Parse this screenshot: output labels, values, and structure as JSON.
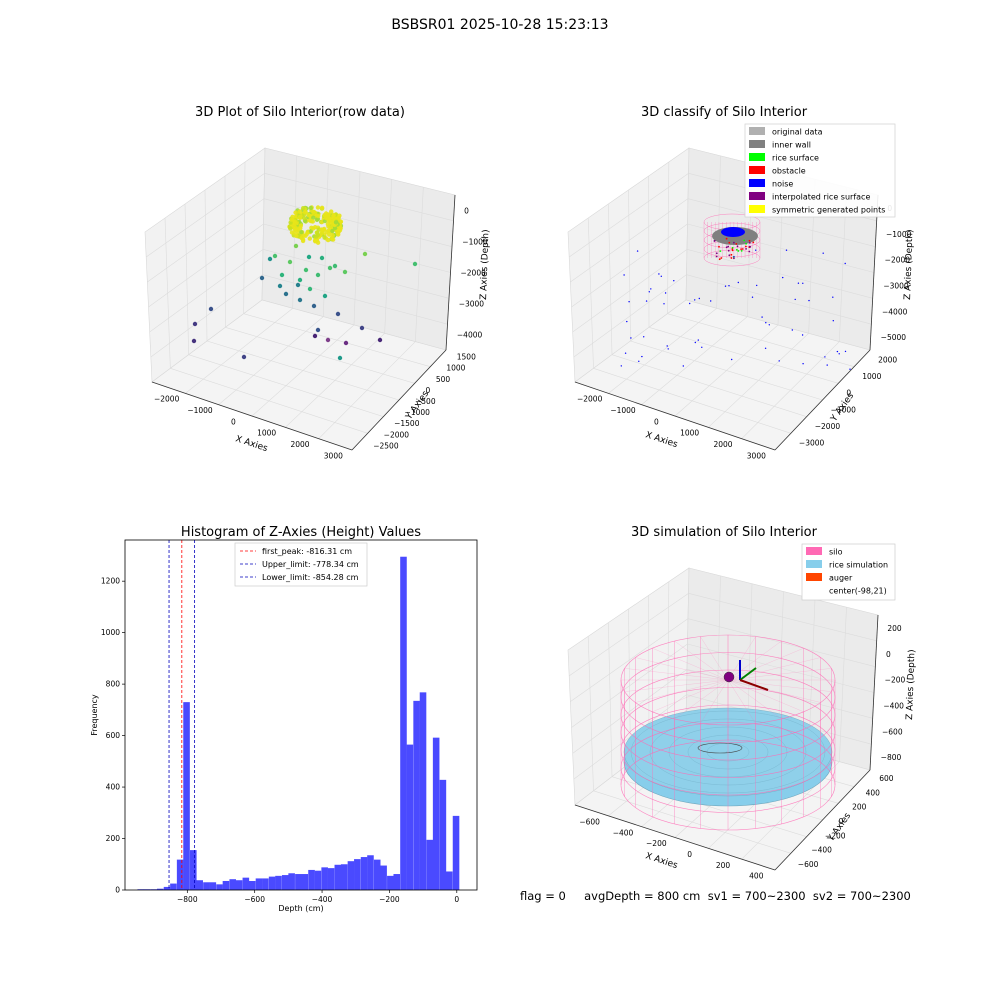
{
  "figure": {
    "suptitle": "BSBSR01 2025-10-28 15:23:13",
    "status_text": "flag = 0     avgDepth = 800 cm  sv1 = 700~2300  sv2 = 700~2300"
  },
  "chart_data": [
    {
      "type": "scatter",
      "projection": "3d",
      "title": "3D Plot of Silo Interior(row data)",
      "xlabel": "X Axies",
      "ylabel": "Y Axies",
      "zlabel": "Z Axies (Depth)",
      "x_ticks": [
        "−2000",
        "−1000",
        "0",
        "1000",
        "2000",
        "3000"
      ],
      "y_ticks": [
        "1500",
        "1000",
        "500",
        "0",
        "−500",
        "−1000",
        "−1500",
        "−2000",
        "−2500"
      ],
      "z_ticks": [
        "0",
        "−1000",
        "−2000",
        "−3000",
        "−4000"
      ],
      "colormap": "viridis (color by depth)"
    },
    {
      "type": "scatter",
      "projection": "3d",
      "title": "3D classify of Silo Interior",
      "xlabel": "X Axies",
      "ylabel": "Y Axies",
      "zlabel": "Z Axies (Depth)",
      "x_ticks": [
        "−2000",
        "−1000",
        "0",
        "1000",
        "2000",
        "3000"
      ],
      "y_ticks": [
        "2000",
        "1000",
        "0",
        "−1000",
        "−2000",
        "−3000"
      ],
      "z_ticks": [
        "0",
        "−1000",
        "−2000",
        "−3000",
        "−4000",
        "−5000"
      ],
      "legend_position": "top-right",
      "legend": [
        {
          "label": "original data",
          "color": "#b0b0b0"
        },
        {
          "label": "inner wall",
          "color": "#808080"
        },
        {
          "label": "rice surface",
          "color": "#00ff00"
        },
        {
          "label": "obstacle",
          "color": "#ff0000"
        },
        {
          "label": "noise",
          "color": "#0000ff"
        },
        {
          "label": "interpolated rice surface",
          "color": "#800080"
        },
        {
          "label": "symmetric generated points",
          "color": "#ffff00"
        }
      ]
    },
    {
      "type": "bar",
      "title": "Histogram of Z-Axies (Height) Values",
      "xlabel": "Depth (cm)",
      "ylabel": "Frequency",
      "xlim": [
        -985,
        60
      ],
      "ylim": [
        0,
        1360
      ],
      "x_ticks": [
        -800,
        -600,
        -400,
        -200,
        0
      ],
      "x_tick_labels": [
        "−800",
        "−600",
        "−400",
        "−200",
        "0"
      ],
      "y_ticks": [
        0,
        200,
        400,
        600,
        800,
        1000,
        1200
      ],
      "bar_color": "#4a4aff",
      "bin_width": 19.5,
      "bins": [
        [
          -948,
          3
        ],
        [
          -929,
          3
        ],
        [
          -909,
          3
        ],
        [
          -890,
          5
        ],
        [
          -870,
          12
        ],
        [
          -851,
          25
        ],
        [
          -831,
          118
        ],
        [
          -812,
          730
        ],
        [
          -792,
          155
        ],
        [
          -773,
          38
        ],
        [
          -753,
          30
        ],
        [
          -734,
          30
        ],
        [
          -714,
          22
        ],
        [
          -695,
          35
        ],
        [
          -675,
          42
        ],
        [
          -656,
          38
        ],
        [
          -636,
          48
        ],
        [
          -617,
          35
        ],
        [
          -597,
          45
        ],
        [
          -578,
          45
        ],
        [
          -558,
          52
        ],
        [
          -539,
          55
        ],
        [
          -519,
          58
        ],
        [
          -500,
          65
        ],
        [
          -480,
          62
        ],
        [
          -461,
          62
        ],
        [
          -441,
          78
        ],
        [
          -422,
          75
        ],
        [
          -402,
          88
        ],
        [
          -383,
          85
        ],
        [
          -363,
          98
        ],
        [
          -344,
          100
        ],
        [
          -324,
          112
        ],
        [
          -305,
          120
        ],
        [
          -285,
          128
        ],
        [
          -266,
          135
        ],
        [
          -246,
          118
        ],
        [
          -227,
          95
        ],
        [
          -207,
          55
        ],
        [
          -188,
          62
        ],
        [
          -168,
          1295
        ],
        [
          -149,
          565
        ],
        [
          -129,
          735
        ],
        [
          -110,
          768
        ],
        [
          -90,
          195
        ],
        [
          -71,
          592
        ],
        [
          -51,
          428
        ],
        [
          -32,
          72
        ],
        [
          -12,
          288
        ]
      ],
      "vlines": [
        {
          "label": "first_peak: -816.31 cm",
          "x": -816.31,
          "color": "#ff0000"
        },
        {
          "label": "Upper_limit: -778.34 cm",
          "x": -778.34,
          "color": "#0000bb"
        },
        {
          "label": "Lower_limit: -854.28 cm",
          "x": -854.28,
          "color": "#0000bb"
        }
      ],
      "legend_position": "upper-center"
    },
    {
      "type": "scatter",
      "projection": "3d",
      "title": "3D simulation of Silo Interior",
      "xlabel": "X Axies",
      "ylabel": "Y Axies",
      "zlabel": "Z Axies (Depth)",
      "x_ticks": [
        "−600",
        "−400",
        "−200",
        "0",
        "200",
        "400"
      ],
      "y_ticks": [
        "600",
        "400",
        "200",
        "0",
        "−200",
        "−400",
        "−600"
      ],
      "z_ticks": [
        "200",
        "0",
        "−200",
        "−400",
        "−600",
        "−800"
      ],
      "legend_position": "top-right",
      "legend": [
        {
          "label": "silo",
          "color": "#ff69b4"
        },
        {
          "label": "rice simulation",
          "color": "#87ceeb"
        },
        {
          "label": "auger",
          "color": "#ff4500"
        },
        {
          "label": "center(-98,21)",
          "color": ""
        }
      ]
    }
  ]
}
